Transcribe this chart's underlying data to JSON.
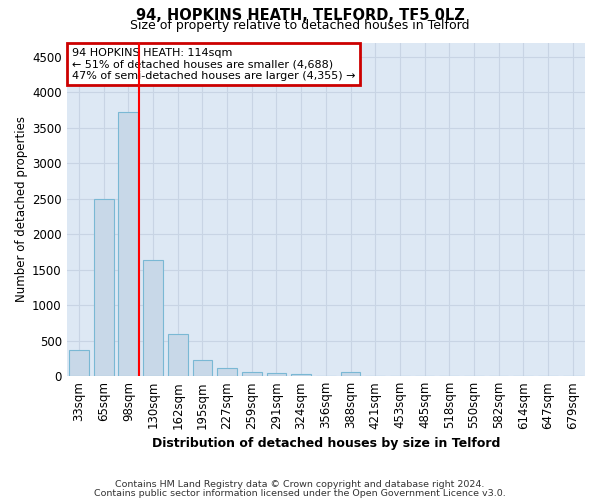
{
  "title": "94, HOPKINS HEATH, TELFORD, TF5 0LZ",
  "subtitle": "Size of property relative to detached houses in Telford",
  "xlabel": "Distribution of detached houses by size in Telford",
  "ylabel": "Number of detached properties",
  "footer_line1": "Contains HM Land Registry data © Crown copyright and database right 2024.",
  "footer_line2": "Contains public sector information licensed under the Open Government Licence v3.0.",
  "categories": [
    "33sqm",
    "65sqm",
    "98sqm",
    "130sqm",
    "162sqm",
    "195sqm",
    "227sqm",
    "259sqm",
    "291sqm",
    "324sqm",
    "356sqm",
    "388sqm",
    "421sqm",
    "453sqm",
    "485sqm",
    "518sqm",
    "550sqm",
    "582sqm",
    "614sqm",
    "647sqm",
    "679sqm"
  ],
  "values": [
    370,
    2500,
    3720,
    1630,
    590,
    230,
    110,
    65,
    40,
    35,
    0,
    60,
    0,
    0,
    0,
    0,
    0,
    0,
    0,
    0,
    0
  ],
  "bar_color": "#c8d8e8",
  "bar_edge_color": "#7ab8d4",
  "grid_color": "#c8d4e4",
  "background_color": "#dde8f4",
  "red_line_x": 2.45,
  "annotation_line1": "94 HOPKINS HEATH: 114sqm",
  "annotation_line2": "← 51% of detached houses are smaller (4,688)",
  "annotation_line3": "47% of semi-detached houses are larger (4,355) →",
  "annotation_box_edgecolor": "#cc0000",
  "ylim": [
    0,
    4700
  ],
  "yticks": [
    0,
    500,
    1000,
    1500,
    2000,
    2500,
    3000,
    3500,
    4000,
    4500
  ]
}
